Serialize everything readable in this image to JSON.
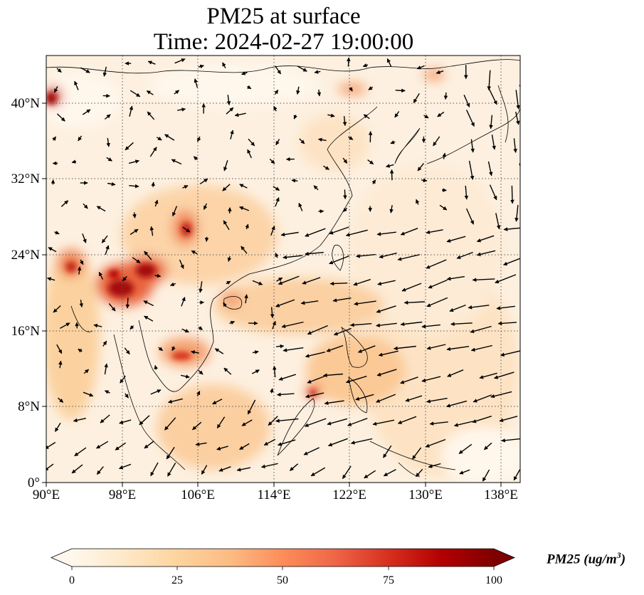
{
  "title": {
    "line1": "PM25 at surface",
    "line2": "Time: 2024-02-27 19:00:00"
  },
  "map": {
    "projection": "PlateCarree",
    "lon_range": [
      90,
      140
    ],
    "lat_range": [
      0,
      45
    ],
    "x_ticks": [
      "90°E",
      "98°E",
      "106°E",
      "114°E",
      "122°E",
      "130°E",
      "138°E"
    ],
    "y_ticks": [
      "0°",
      "8°N",
      "16°N",
      "24°N",
      "32°N",
      "40°N"
    ],
    "gridlines": "dotted",
    "field": "PM25 concentration (filled raster)",
    "overlay": "wind vectors (arrows)",
    "colormap": "OrRd",
    "colors": {
      "low": "#fff7ec",
      "mid_low": "#fdd49e",
      "mid": "#fc8d59",
      "high": "#d7301f",
      "max": "#7f0000",
      "coast": "#000000",
      "grid": "#555555"
    }
  },
  "colorbar": {
    "label": "PM25 (ug/m",
    "label_sup": "3",
    "label_close": ")",
    "ticks": [
      "0",
      "25",
      "50",
      "75",
      "100"
    ],
    "range": [
      0,
      100
    ],
    "extend": "both"
  }
}
